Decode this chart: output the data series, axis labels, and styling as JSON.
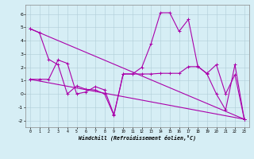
{
  "xlabel": "Windchill (Refroidissement éolien,°C)",
  "ylabel": "",
  "bg_color": "#d6eef5",
  "line_color": "#aa00aa",
  "xlim": [
    -0.5,
    23.5
  ],
  "ylim": [
    -2.5,
    6.7
  ],
  "yticks": [
    -2,
    -1,
    0,
    1,
    2,
    3,
    4,
    5,
    6
  ],
  "xticks": [
    0,
    1,
    2,
    3,
    4,
    5,
    6,
    7,
    8,
    9,
    10,
    11,
    12,
    13,
    14,
    15,
    16,
    17,
    18,
    19,
    20,
    21,
    22,
    23
  ],
  "line1_x": [
    0,
    1,
    2,
    3,
    4,
    5,
    6,
    7,
    8,
    9,
    10,
    11,
    12,
    13,
    14,
    15,
    16,
    17,
    18,
    19,
    20,
    21,
    22,
    23
  ],
  "line1_y": [
    4.9,
    4.6,
    2.6,
    2.2,
    0.0,
    0.6,
    0.35,
    0.3,
    0.0,
    -1.6,
    1.5,
    1.5,
    2.0,
    3.8,
    6.1,
    6.1,
    4.7,
    5.6,
    2.1,
    1.5,
    0.0,
    -1.2,
    2.2,
    -1.9
  ],
  "line2_x": [
    0,
    1,
    2,
    3,
    4,
    5,
    6,
    7,
    8,
    9,
    10,
    11,
    12,
    13,
    14,
    15,
    16,
    17,
    18,
    19,
    20,
    21,
    22,
    23
  ],
  "line2_y": [
    1.1,
    1.1,
    1.1,
    2.55,
    2.3,
    0.0,
    0.15,
    0.55,
    0.3,
    -1.55,
    1.5,
    1.5,
    1.5,
    1.5,
    1.55,
    1.55,
    1.55,
    2.05,
    2.05,
    1.55,
    2.2,
    0.0,
    1.45,
    -1.9
  ],
  "line3_x": [
    0,
    23
  ],
  "line3_y": [
    4.9,
    -1.9
  ],
  "line4_x": [
    0,
    23
  ],
  "line4_y": [
    1.1,
    -1.9
  ]
}
